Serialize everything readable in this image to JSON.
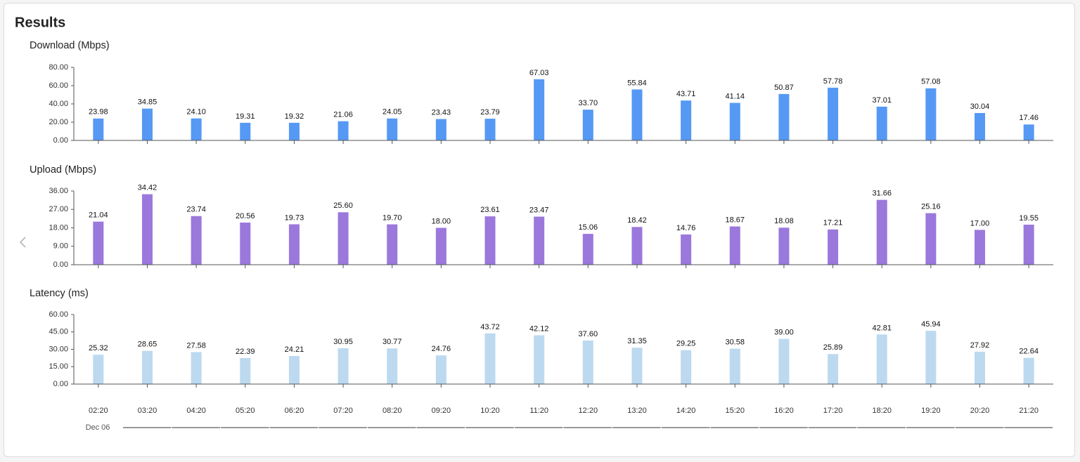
{
  "header": {
    "title": "Results"
  },
  "chart_data": [
    {
      "type": "bar",
      "title": "Download (Mbps)",
      "color": "#5599f5",
      "values": [
        23.98,
        34.85,
        24.1,
        19.31,
        19.32,
        21.06,
        24.05,
        23.43,
        23.79,
        67.03,
        33.7,
        55.84,
        43.71,
        41.14,
        50.87,
        57.78,
        37.01,
        57.08,
        30.04,
        17.46
      ],
      "value_labels": [
        "23.98",
        "34.85",
        "24.10",
        "19.31",
        "19.32",
        "21.06",
        "24.05",
        "23.43",
        "23.79",
        "67.03",
        "33.70",
        "55.84",
        "43.71",
        "41.14",
        "50.87",
        "57.78",
        "37.01",
        "57.08",
        "30.04",
        "17.46"
      ],
      "ylim": [
        0,
        80
      ],
      "yticks": [
        {
          "value": 0,
          "label": "0.00"
        },
        {
          "value": 20,
          "label": "20.00"
        },
        {
          "value": 40,
          "label": "40.00"
        },
        {
          "value": 60,
          "label": "60.00"
        },
        {
          "value": 80,
          "label": "80.00"
        }
      ]
    },
    {
      "type": "bar",
      "title": "Upload (Mbps)",
      "color": "#9b78dc",
      "values": [
        21.04,
        34.42,
        23.74,
        20.56,
        19.73,
        25.6,
        19.7,
        18.0,
        23.61,
        23.47,
        15.06,
        18.42,
        14.76,
        18.67,
        18.08,
        17.21,
        31.66,
        25.16,
        17.0,
        19.55
      ],
      "value_labels": [
        "21.04",
        "34.42",
        "23.74",
        "20.56",
        "19.73",
        "25.60",
        "19.70",
        "18.00",
        "23.61",
        "23.47",
        "15.06",
        "18.42",
        "14.76",
        "18.67",
        "18.08",
        "17.21",
        "31.66",
        "25.16",
        "17.00",
        "19.55"
      ],
      "ylim": [
        0,
        36
      ],
      "yticks": [
        {
          "value": 0,
          "label": "0.00"
        },
        {
          "value": 9,
          "label": "9.00"
        },
        {
          "value": 18,
          "label": "18.00"
        },
        {
          "value": 27,
          "label": "27.00"
        },
        {
          "value": 36,
          "label": "36.00"
        }
      ]
    },
    {
      "type": "bar",
      "title": "Latency (ms)",
      "color": "#bcd9ef",
      "values": [
        25.32,
        28.65,
        27.58,
        22.39,
        24.21,
        30.95,
        30.77,
        24.76,
        43.72,
        42.12,
        37.6,
        31.35,
        29.25,
        30.58,
        39.0,
        25.89,
        42.81,
        45.94,
        27.92,
        22.64
      ],
      "value_labels": [
        "25.32",
        "28.65",
        "27.58",
        "22.39",
        "24.21",
        "30.95",
        "30.77",
        "24.76",
        "43.72",
        "42.12",
        "37.60",
        "31.35",
        "29.25",
        "30.58",
        "39.00",
        "25.89",
        "42.81",
        "45.94",
        "27.92",
        "22.64"
      ],
      "ylim": [
        0,
        60
      ],
      "yticks": [
        {
          "value": 0,
          "label": "0.00"
        },
        {
          "value": 15,
          "label": "15.00"
        },
        {
          "value": 30,
          "label": "30.00"
        },
        {
          "value": 45,
          "label": "45.00"
        },
        {
          "value": 60,
          "label": "60.00"
        }
      ],
      "categories": [
        "02:20",
        "03:20",
        "04:20",
        "05:20",
        "06:20",
        "07:20",
        "08:20",
        "09:20",
        "10:20",
        "11:20",
        "12:20",
        "13:20",
        "14:20",
        "15:20",
        "16:20",
        "17:20",
        "18:20",
        "19:20",
        "20:20",
        "21:20"
      ],
      "x_group_label": "Dec 06"
    }
  ]
}
